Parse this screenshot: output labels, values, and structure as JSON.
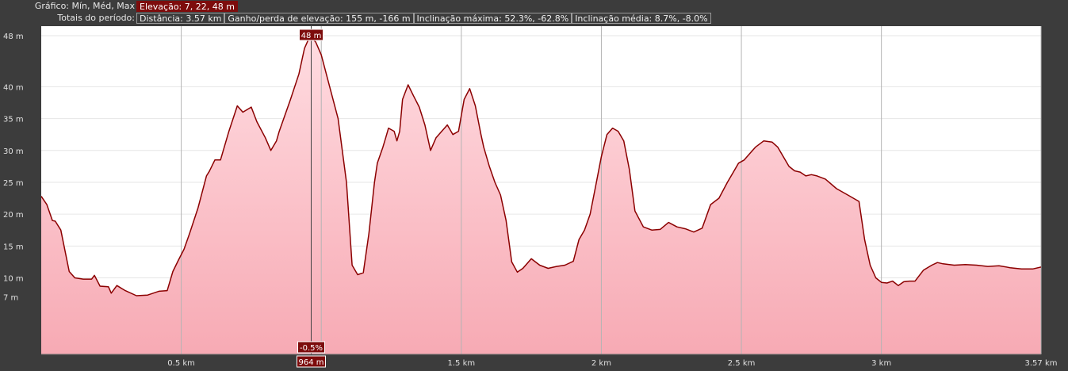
{
  "header": {
    "row1_label": "Gráfico: Mín, Méd, Max",
    "elevation_stat": "Elevação: 7, 22, 48 m",
    "row2_label": "Totais do período:",
    "distance_stat": "Distância: 3.57 km",
    "gain_loss_stat": "Ganho/perda de elevação: 155 m, -166 m",
    "max_incline_stat": "Inclinação máxima: 52.3%, -62.8%",
    "avg_incline_stat": "Inclinação média: 8.7%, -8.0%"
  },
  "cursor": {
    "distance_label": "964 m",
    "elevation_label": "48 m",
    "slope_label": "-0.5%",
    "distance_km": 0.964,
    "elevation_m": 48
  },
  "colors": {
    "line": "#8b0000",
    "fill_top": "#ffdce1",
    "fill_bottom": "#f7aab4",
    "highlight": "#7d0c0c",
    "axis_text": "#e0e0e0",
    "grid": "#b4b4b4"
  },
  "chart_data": {
    "type": "area",
    "title": "",
    "xlabel": "",
    "ylabel": "",
    "xlim": [
      0,
      3.57
    ],
    "ylim": [
      -2,
      49.5
    ],
    "grid": true,
    "x_ticks": [
      {
        "value": 0.5,
        "label": "0.5 km"
      },
      {
        "value": 1.0,
        "label": ""
      },
      {
        "value": 1.5,
        "label": "1.5 km"
      },
      {
        "value": 2.0,
        "label": "2 km"
      },
      {
        "value": 2.5,
        "label": "2.5 km"
      },
      {
        "value": 3.0,
        "label": "3 km"
      },
      {
        "value": 3.57,
        "label": "3.57 km"
      }
    ],
    "y_ticks": [
      {
        "value": 48,
        "label": "48 m"
      },
      {
        "value": 40,
        "label": "40 m"
      },
      {
        "value": 35,
        "label": "35 m"
      },
      {
        "value": 30,
        "label": "30 m"
      },
      {
        "value": 25,
        "label": "25 m"
      },
      {
        "value": 20,
        "label": "20 m"
      },
      {
        "value": 15,
        "label": "15 m"
      },
      {
        "value": 10,
        "label": "10 m"
      },
      {
        "value": 7,
        "label": "7 m"
      }
    ],
    "x": [
      0,
      0.02,
      0.04,
      0.05,
      0.07,
      0.1,
      0.12,
      0.15,
      0.18,
      0.19,
      0.21,
      0.24,
      0.25,
      0.27,
      0.3,
      0.34,
      0.38,
      0.42,
      0.45,
      0.47,
      0.49,
      0.51,
      0.53,
      0.56,
      0.59,
      0.6,
      0.62,
      0.64,
      0.67,
      0.7,
      0.72,
      0.75,
      0.77,
      0.8,
      0.82,
      0.84,
      0.85,
      0.87,
      0.89,
      0.92,
      0.94,
      0.96,
      0.98,
      1.0,
      1.03,
      1.06,
      1.09,
      1.11,
      1.13,
      1.15,
      1.17,
      1.19,
      1.2,
      1.22,
      1.23,
      1.24,
      1.26,
      1.27,
      1.28,
      1.29,
      1.31,
      1.33,
      1.35,
      1.37,
      1.39,
      1.41,
      1.43,
      1.45,
      1.47,
      1.49,
      1.51,
      1.53,
      1.55,
      1.57,
      1.58,
      1.6,
      1.62,
      1.64,
      1.66,
      1.68,
      1.7,
      1.72,
      1.75,
      1.78,
      1.81,
      1.84,
      1.87,
      1.9,
      1.92,
      1.94,
      1.96,
      1.98,
      2.0,
      2.02,
      2.04,
      2.06,
      2.08,
      2.1,
      2.12,
      2.15,
      2.18,
      2.21,
      2.24,
      2.27,
      2.3,
      2.33,
      2.36,
      2.39,
      2.42,
      2.45,
      2.47,
      2.49,
      2.51,
      2.53,
      2.55,
      2.58,
      2.61,
      2.63,
      2.65,
      2.67,
      2.69,
      2.71,
      2.73,
      2.75,
      2.77,
      2.8,
      2.84,
      2.88,
      2.92,
      2.94,
      2.96,
      2.98,
      3.0,
      3.02,
      3.04,
      3.06,
      3.08,
      3.1,
      3.12,
      3.15,
      3.18,
      3.2,
      3.22,
      3.26,
      3.3,
      3.34,
      3.38,
      3.42,
      3.46,
      3.5,
      3.54,
      3.57
    ],
    "series": [
      {
        "values": [
          22.8,
          21.5,
          19.0,
          18.9,
          17.5,
          11.0,
          10.0,
          9.8,
          9.8,
          10.4,
          8.7,
          8.6,
          7.6,
          8.8,
          8.0,
          7.2,
          7.3,
          7.9,
          8.0,
          11.0,
          12.8,
          14.5,
          17.0,
          21.0,
          26.0,
          26.7,
          28.5,
          28.5,
          33.0,
          37.0,
          36.0,
          36.8,
          34.5,
          32.0,
          30.0,
          31.5,
          33.0,
          35.5,
          38.0,
          42.0,
          46.0,
          48.0,
          47.0,
          45.0,
          40.0,
          35.0,
          25.0,
          12.0,
          10.5,
          10.8,
          17.0,
          25.0,
          28.0,
          30.5,
          32.0,
          33.5,
          33.0,
          31.5,
          33.0,
          38.0,
          40.3,
          38.5,
          36.8,
          34.0,
          30.0,
          32.0,
          33.0,
          34.0,
          32.5,
          33.0,
          38.0,
          39.7,
          37.0,
          32.5,
          30.5,
          27.5,
          25.0,
          23.0,
          19.0,
          12.5,
          10.9,
          11.5,
          13.0,
          12.0,
          11.5,
          11.8,
          12.0,
          12.6,
          16.0,
          17.5,
          20.0,
          24.5,
          29.0,
          32.5,
          33.5,
          33.0,
          31.5,
          27.0,
          20.5,
          18.0,
          17.5,
          17.6,
          18.7,
          18.0,
          17.7,
          17.2,
          17.8,
          21.5,
          22.5,
          25.0,
          26.5,
          28.0,
          28.5,
          29.5,
          30.5,
          31.5,
          31.3,
          30.5,
          29.0,
          27.5,
          26.8,
          26.6,
          26.0,
          26.2,
          26.0,
          25.5,
          24.0,
          23.0,
          22.0,
          16.0,
          12.0,
          10.0,
          9.3,
          9.2,
          9.5,
          8.8,
          9.4,
          9.5,
          9.5,
          11.2,
          12.0,
          12.4,
          12.2,
          12.0,
          12.1,
          12.0,
          11.8,
          11.9,
          11.6,
          11.4,
          11.4,
          11.7
        ]
      }
    ]
  }
}
